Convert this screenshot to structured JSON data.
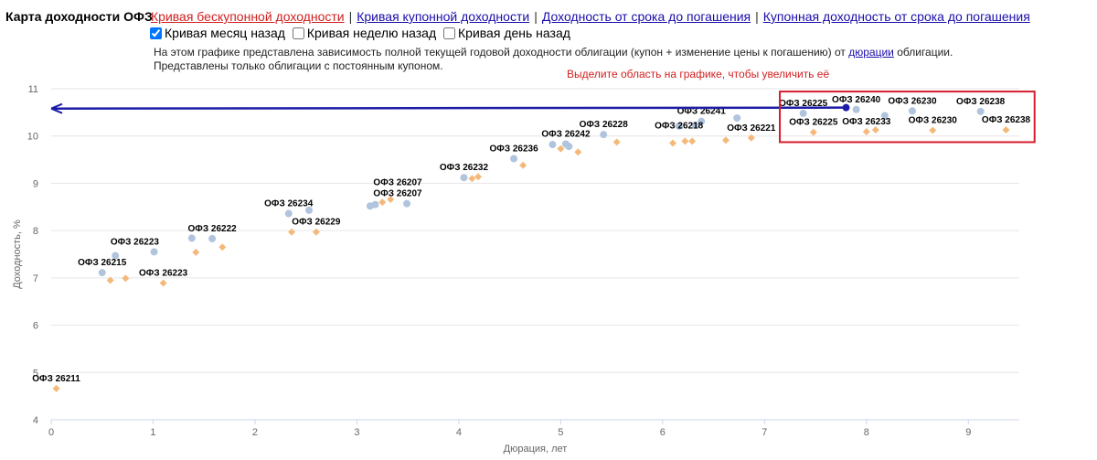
{
  "header": {
    "title": "Карта доходности ОФЗ",
    "links": [
      {
        "label": "Кривая бескупонной доходности",
        "active": true
      },
      {
        "label": "Кривая купонной доходности",
        "active": false
      },
      {
        "label": "Доходность от срока до погашения",
        "active": false
      },
      {
        "label": "Купонная доходность от срока до погашения",
        "active": false
      }
    ],
    "separator": "|"
  },
  "options": [
    {
      "label": "Кривая месяц назад",
      "checked": true
    },
    {
      "label": "Кривая неделю назад",
      "checked": false
    },
    {
      "label": "Кривая день назад",
      "checked": false
    }
  ],
  "description": {
    "line1_before": "На этом графике представлена зависимость полной текущей годовой доходности облигации (купон + изменение цены к погашению) от",
    "line1_link": "дюрации",
    "line1_after": "облигации.",
    "line2": "Представлены только облигации с постоянным купоном."
  },
  "hint": "Выделите область на графике, чтобы увеличить её",
  "colors": {
    "current": "#b0c4de",
    "month_ago": "#f4b97a",
    "arrow": "#1c1ca8",
    "zoom_box": "#d41c2c",
    "grid": "#e6e6e6"
  },
  "chart_data": {
    "type": "scatter",
    "xlabel": "Дюрация, лет",
    "ylabel": "Доходность, %",
    "xlim": [
      0,
      9.5
    ],
    "ylim": [
      4,
      11
    ],
    "x_ticks": [
      0,
      1,
      2,
      3,
      4,
      5,
      6,
      7,
      8,
      9
    ],
    "y_ticks": [
      4,
      5,
      6,
      7,
      8,
      9,
      10,
      11
    ],
    "grid": "horizontal",
    "series": [
      {
        "color": "#b0c4de",
        "marker": "circle",
        "points": [
          [
            0.5,
            7.11
          ],
          [
            0.63,
            7.47
          ],
          [
            1.01,
            7.55
          ],
          [
            1.38,
            7.84
          ],
          [
            1.58,
            7.83
          ],
          [
            2.33,
            8.36
          ],
          [
            2.53,
            8.43
          ],
          [
            3.13,
            8.52
          ],
          [
            3.18,
            8.55
          ],
          [
            3.49,
            8.57
          ],
          [
            4.05,
            9.12
          ],
          [
            4.54,
            9.52
          ],
          [
            4.92,
            9.82
          ],
          [
            5.05,
            9.83
          ],
          [
            5.08,
            9.78
          ],
          [
            5.42,
            10.03
          ],
          [
            6.16,
            10.21
          ],
          [
            6.32,
            10.23
          ],
          [
            6.38,
            10.31
          ],
          [
            6.73,
            10.38
          ],
          [
            7.38,
            10.48
          ],
          [
            7.9,
            10.56
          ],
          [
            8.18,
            10.43
          ],
          [
            8.45,
            10.53
          ],
          [
            9.12,
            10.52
          ]
        ]
      },
      {
        "color": "#f4b97a",
        "marker": "diamond",
        "points": [
          [
            0.05,
            4.66
          ],
          [
            0.58,
            6.95
          ],
          [
            0.73,
            6.99
          ],
          [
            1.1,
            6.89
          ],
          [
            1.42,
            7.54
          ],
          [
            1.68,
            7.65
          ],
          [
            2.36,
            7.97
          ],
          [
            2.6,
            7.97
          ],
          [
            3.25,
            8.6
          ],
          [
            3.33,
            8.66
          ],
          [
            4.13,
            9.1
          ],
          [
            4.19,
            9.14
          ],
          [
            4.63,
            9.38
          ],
          [
            5.0,
            9.73
          ],
          [
            5.17,
            9.66
          ],
          [
            5.55,
            9.87
          ],
          [
            6.1,
            9.85
          ],
          [
            6.22,
            9.89
          ],
          [
            6.29,
            9.89
          ],
          [
            6.62,
            9.91
          ],
          [
            6.87,
            9.96
          ],
          [
            7.48,
            10.08
          ],
          [
            8.0,
            10.09
          ],
          [
            8.09,
            10.13
          ],
          [
            8.65,
            10.12
          ],
          [
            9.37,
            10.13
          ]
        ]
      }
    ],
    "annotations": [
      {
        "text": "ОФЗ 26211",
        "x": 0.05,
        "y": 4.66
      },
      {
        "text": "ОФЗ 26215",
        "x": 0.5,
        "y": 7.11
      },
      {
        "text": "ОФЗ 26223",
        "x": 0.82,
        "y": 7.55
      },
      {
        "text": "ОФЗ 26223",
        "x": 1.1,
        "y": 6.89
      },
      {
        "text": "ОФЗ 26222",
        "x": 1.58,
        "y": 7.83
      },
      {
        "text": "ОФЗ 26234",
        "x": 2.33,
        "y": 8.36
      },
      {
        "text": "ОФЗ 26229",
        "x": 2.6,
        "y": 7.97
      },
      {
        "text": "ОФЗ 26207",
        "x": 3.4,
        "y": 8.81
      },
      {
        "text": "ОФЗ 26207",
        "x": 3.4,
        "y": 8.57
      },
      {
        "text": "ОФЗ 26232",
        "x": 4.05,
        "y": 9.12
      },
      {
        "text": "ОФЗ 26236",
        "x": 4.54,
        "y": 9.52
      },
      {
        "text": "ОФЗ 26242",
        "x": 5.05,
        "y": 9.83
      },
      {
        "text": "ОФЗ 26228",
        "x": 5.42,
        "y": 10.03
      },
      {
        "text": "ОФЗ 26218",
        "x": 6.16,
        "y": 10.0
      },
      {
        "text": "ОФЗ 26241",
        "x": 6.38,
        "y": 10.31
      },
      {
        "text": "ОФЗ 26221",
        "x": 6.87,
        "y": 9.96
      },
      {
        "text": "ОФЗ 26225",
        "x": 7.38,
        "y": 10.48
      },
      {
        "text": "ОФЗ 26240",
        "x": 7.9,
        "y": 10.56
      },
      {
        "text": "ОФЗ 26230",
        "x": 8.45,
        "y": 10.53
      },
      {
        "text": "ОФЗ 26238",
        "x": 9.12,
        "y": 10.52
      },
      {
        "text": "ОФЗ 26225",
        "x": 7.48,
        "y": 10.08
      },
      {
        "text": "ОФЗ 26233",
        "x": 8.0,
        "y": 10.09
      },
      {
        "text": "ОФЗ 26230",
        "x": 8.65,
        "y": 10.12
      },
      {
        "text": "ОФЗ 26238",
        "x": 9.37,
        "y": 10.13
      }
    ],
    "arrow": {
      "from": [
        7.8,
        10.6
      ],
      "to": [
        0.0,
        10.58
      ]
    },
    "zoom_box": {
      "x": [
        7.15,
        9.65
      ],
      "y": [
        9.87,
        10.94
      ]
    }
  }
}
